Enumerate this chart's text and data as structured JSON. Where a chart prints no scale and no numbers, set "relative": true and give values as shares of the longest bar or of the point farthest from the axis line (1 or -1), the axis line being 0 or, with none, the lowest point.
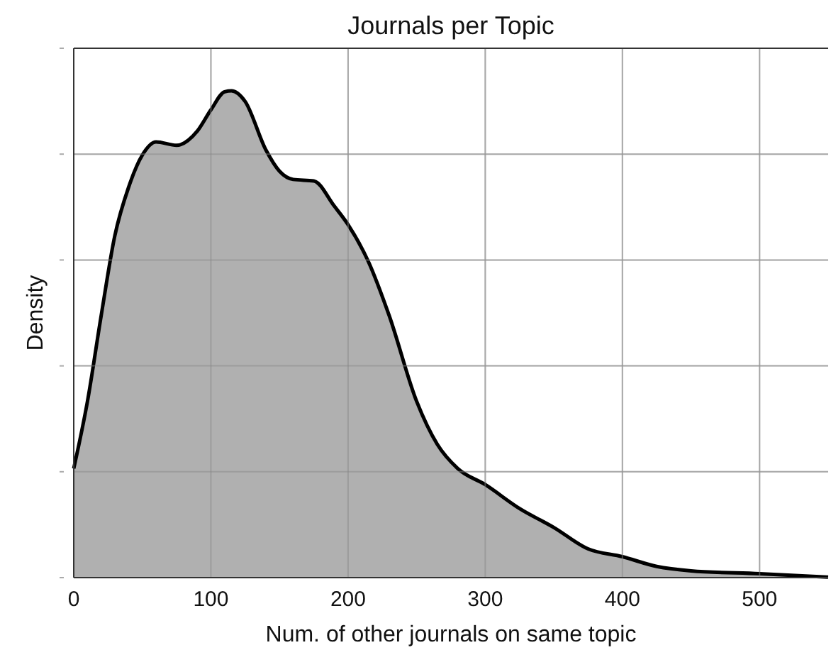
{
  "chart_data": {
    "type": "area",
    "title": "Journals per Topic",
    "xlabel": "Num. of other journals on same topic",
    "ylabel": "Density",
    "relative": true,
    "grid": true,
    "xlim": [
      0,
      550
    ],
    "xticks": [
      0,
      100,
      200,
      300,
      400,
      500
    ],
    "series": [
      {
        "color": "#b0b0b0",
        "x": [
          0,
          10,
          20,
          30,
          40,
          50,
          60,
          75,
          90,
          100,
          110,
          115,
          125,
          140,
          150,
          160,
          175,
          190,
          200,
          215,
          230,
          250,
          265,
          280,
          300,
          325,
          350,
          375,
          400,
          425,
          450,
          500,
          550
        ],
        "values": [
          0.224,
          0.362,
          0.538,
          0.703,
          0.802,
          0.868,
          0.895,
          0.888,
          0.917,
          0.961,
          0.998,
          1,
          0.978,
          0.879,
          0.835,
          0.818,
          0.815,
          0.763,
          0.725,
          0.648,
          0.538,
          0.362,
          0.274,
          0.224,
          0.191,
          0.142,
          0.103,
          0.059,
          0.043,
          0.023,
          0.014,
          0.008,
          0.001
        ]
      }
    ]
  }
}
